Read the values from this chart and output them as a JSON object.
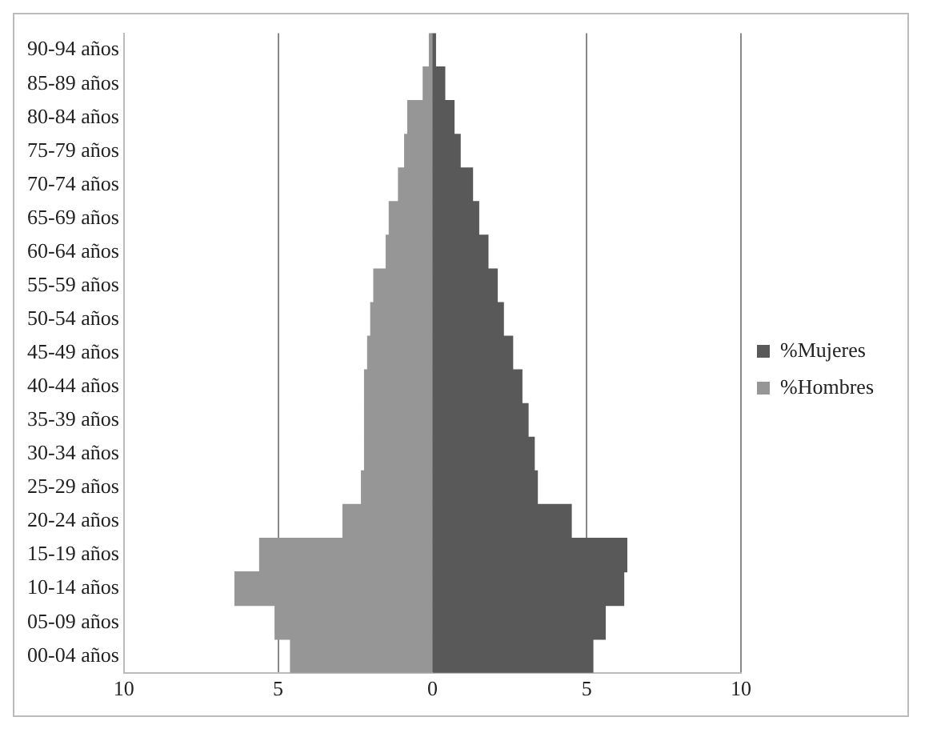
{
  "chart_data": {
    "type": "bar",
    "orientation": "horizontal",
    "stacked": true,
    "categories": [
      "90-94 años",
      "85-89 años",
      "80-84 años",
      "75-79 años",
      "70-74 años",
      "65-69 años",
      "60-64 años",
      "55-59 años",
      "50-54 años",
      "45-49 años",
      "40-44 años",
      "35-39 años",
      "30-34 años",
      "25-29 años",
      "20-24 años",
      "15-19 años",
      "10-14 años",
      "05-09 años",
      "00-04 años"
    ],
    "series": [
      {
        "name": "%Mujeres",
        "color": "#595959",
        "values": [
          0.1,
          0.4,
          0.7,
          0.9,
          1.3,
          1.5,
          1.8,
          2.1,
          2.3,
          2.6,
          2.9,
          3.1,
          3.3,
          3.4,
          4.5,
          6.3,
          6.2,
          5.6,
          5.2
        ]
      },
      {
        "name": "%Hombres",
        "color": "#969696",
        "values": [
          -0.1,
          -0.3,
          -0.8,
          -0.9,
          -1.1,
          -1.4,
          -1.5,
          -1.9,
          -2.0,
          -2.1,
          -2.2,
          -2.2,
          -2.2,
          -2.3,
          -2.9,
          -5.6,
          -6.4,
          -5.1,
          -4.6
        ]
      }
    ],
    "xlim": [
      -10,
      10
    ],
    "xticks": [
      {
        "value": -10,
        "label": "10"
      },
      {
        "value": -5,
        "label": "5"
      },
      0,
      5,
      10
    ],
    "grid": "x",
    "legend": "right"
  }
}
